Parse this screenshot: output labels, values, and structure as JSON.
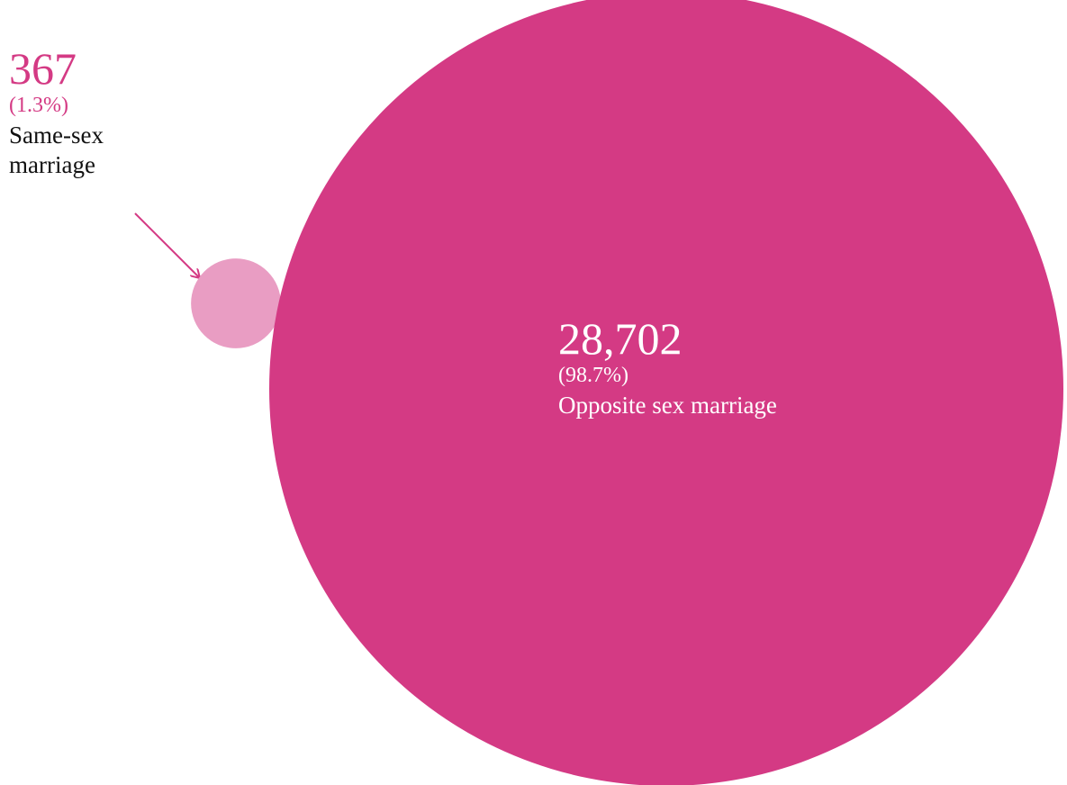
{
  "chart_data": {
    "type": "bubble",
    "categories": [
      "Same-sex marriage",
      "Opposite sex marriage"
    ],
    "values": [
      367,
      28702
    ],
    "value_labels": [
      "367",
      "28,702"
    ],
    "shares": [
      1.3,
      98.7
    ],
    "share_labels": [
      "(1.3%)",
      "(98.7%)"
    ],
    "colors": [
      "#e99dc3",
      "#d43a84"
    ]
  }
}
